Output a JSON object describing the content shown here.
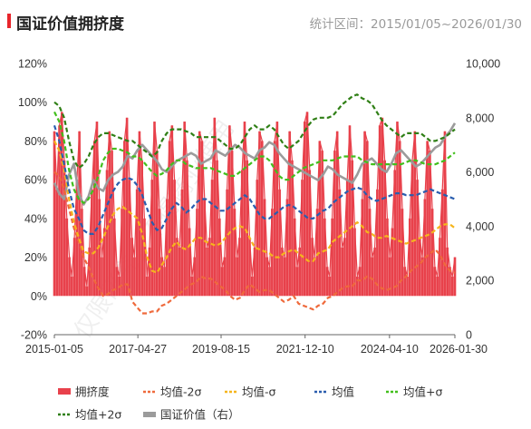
{
  "header": {
    "title": "国证价值拥挤度",
    "range_label": "统计区间：2015/01/05~2026/01/30"
  },
  "watermark": "仅限研究，不得商业使用",
  "chart_data": {
    "type": "line",
    "x_start": "2015-01-05",
    "x_end": "2026-01-30",
    "x_ticks": [
      "2015-01-05",
      "2017-04-27",
      "2019-08-15",
      "2021-12-10",
      "2024-04-10",
      "2026-01-30"
    ],
    "y_left": {
      "ticks": [
        "-20%",
        "0%",
        "20%",
        "40%",
        "60%",
        "80%",
        "100%",
        "120%"
      ],
      "min": -20,
      "max": 120
    },
    "y_right": {
      "ticks": [
        "0",
        "2,000",
        "4,000",
        "6,000",
        "8,000",
        "10,000"
      ],
      "min": 0,
      "max": 10000
    },
    "grid": false,
    "legend_position": "bottom",
    "series": [
      {
        "name": "拥挤度",
        "style": "bar",
        "color": "#e8414b",
        "axis": "left",
        "values": [
          85,
          55,
          88,
          95,
          70,
          40,
          20,
          10,
          30,
          60,
          85,
          45,
          15,
          5,
          25,
          55,
          80,
          90,
          50,
          20,
          35,
          65,
          85,
          75,
          40,
          15,
          10,
          45,
          80,
          92,
          60,
          30,
          20,
          55,
          85,
          70,
          40,
          10,
          25,
          60,
          90,
          75,
          45,
          20,
          15,
          50,
          80,
          88,
          60,
          30,
          25,
          55,
          90,
          70,
          35,
          10,
          20,
          45,
          85,
          80,
          50,
          25,
          30,
          60,
          92,
          70,
          40,
          15,
          20,
          55,
          88,
          75,
          45,
          20,
          30,
          65,
          90,
          70,
          30,
          10,
          25,
          60,
          85,
          80,
          50,
          20,
          15,
          45,
          80,
          90,
          55,
          25,
          20,
          50,
          85,
          70,
          40,
          15,
          25,
          60,
          90,
          95,
          65,
          30,
          20,
          45,
          80,
          75,
          40,
          15,
          10,
          40,
          75,
          85,
          55,
          25,
          30,
          60,
          88,
          70,
          35,
          10,
          15,
          50,
          85,
          80,
          45,
          20,
          25,
          55,
          88,
          92,
          70,
          40,
          20,
          35,
          65,
          90,
          80,
          45,
          15,
          10,
          40,
          70,
          85,
          60,
          30,
          20,
          50,
          80,
          75,
          45,
          15,
          10,
          30,
          55,
          85,
          25,
          15,
          10,
          20
        ]
      },
      {
        "name": "均值-2σ",
        "style": "dash",
        "color": "#ef6a3c",
        "axis": "left",
        "values": [
          64,
          62,
          55,
          45,
          35,
          28,
          20,
          15,
          9,
          4,
          0,
          1,
          3,
          4,
          6,
          6,
          -3,
          -6,
          -9,
          -9,
          -8,
          -8,
          -5,
          -4,
          -2,
          0,
          2,
          4,
          6,
          7,
          10,
          9,
          9,
          7,
          5,
          3,
          0,
          -2,
          -1,
          3,
          6,
          4,
          2,
          3,
          3,
          1,
          -1,
          -3,
          -2,
          0,
          -4,
          -5,
          -6,
          -7,
          -5,
          -4,
          -1,
          0,
          2,
          4,
          5,
          5,
          8,
          8,
          10,
          9,
          6,
          4,
          3,
          4,
          5,
          8,
          10,
          13,
          15,
          17,
          20,
          22,
          24,
          21,
          16,
          13,
          12
        ]
      },
      {
        "name": "均值-σ",
        "style": "dash",
        "color": "#f5b51d",
        "axis": "left",
        "values": [
          80,
          75,
          65,
          50,
          38,
          30,
          23,
          22,
          22,
          25,
          30,
          36,
          42,
          45,
          46,
          44,
          42,
          40,
          32,
          20,
          13,
          12,
          16,
          20,
          25,
          28,
          25,
          24,
          27,
          30,
          30,
          28,
          27,
          26,
          27,
          30,
          33,
          35,
          36,
          35,
          30,
          25,
          24,
          23,
          22,
          20,
          20,
          22,
          23,
          24,
          22,
          20,
          18,
          18,
          22,
          23,
          24,
          28,
          30,
          32,
          34,
          36,
          38,
          36,
          33,
          32,
          30,
          30,
          31,
          30,
          29,
          28,
          27,
          28,
          29,
          30,
          31,
          32,
          34,
          36,
          37,
          37,
          35
        ]
      },
      {
        "name": "均值",
        "style": "dash",
        "color": "#2a5dae",
        "axis": "left",
        "values": [
          88,
          80,
          68,
          55,
          45,
          40,
          34,
          32,
          32,
          36,
          42,
          48,
          54,
          58,
          60,
          61,
          60,
          57,
          52,
          45,
          38,
          34,
          35,
          40,
          45,
          48,
          46,
          43,
          45,
          48,
          50,
          50,
          48,
          46,
          44,
          44,
          46,
          48,
          50,
          52,
          50,
          46,
          42,
          40,
          40,
          42,
          44,
          46,
          47,
          46,
          44,
          42,
          40,
          40,
          42,
          44,
          45,
          48,
          50,
          52,
          54,
          55,
          56,
          55,
          52,
          50,
          49,
          50,
          51,
          52,
          53,
          53,
          52,
          52,
          52,
          53,
          54,
          55,
          54,
          53,
          52,
          51,
          50
        ]
      },
      {
        "name": "均值+σ",
        "style": "dash",
        "color": "#42bf1d",
        "axis": "left",
        "values": [
          95,
          90,
          80,
          65,
          55,
          50,
          48,
          50,
          55,
          62,
          70,
          74,
          76,
          76,
          75,
          74,
          72,
          72,
          70,
          67,
          64,
          62,
          63,
          65,
          68,
          70,
          70,
          68,
          67,
          66,
          66,
          66,
          66,
          65,
          64,
          63,
          62,
          62,
          64,
          66,
          68,
          70,
          72,
          72,
          70,
          66,
          62,
          60,
          60,
          62,
          64,
          66,
          67,
          68,
          69,
          70,
          70,
          70,
          71,
          72,
          72,
          72,
          72,
          70,
          69,
          68,
          68,
          68,
          68,
          68,
          68,
          68,
          69,
          70,
          70,
          69,
          68,
          68,
          68,
          69,
          70,
          72,
          74
        ]
      },
      {
        "name": "均值+2σ",
        "style": "dash",
        "color": "#2f7f15",
        "axis": "left",
        "values": [
          100,
          98,
          92,
          80,
          70,
          66,
          68,
          72,
          78,
          82,
          84,
          84,
          83,
          82,
          81,
          80,
          80,
          78,
          76,
          74,
          72,
          74,
          80,
          84,
          86,
          86,
          86,
          85,
          84,
          82,
          82,
          82,
          82,
          82,
          80,
          78,
          76,
          76,
          78,
          82,
          86,
          88,
          86,
          86,
          88,
          86,
          82,
          78,
          76,
          78,
          80,
          84,
          88,
          91,
          92,
          92,
          92,
          93,
          96,
          99,
          101,
          103,
          104,
          102,
          101,
          99,
          95,
          91,
          88,
          86,
          84,
          82,
          84,
          84,
          84,
          84,
          82,
          80,
          80,
          81,
          82,
          84,
          86
        ]
      },
      {
        "name": "国证价值（右）",
        "style": "line",
        "color": "#9b9b9b",
        "axis": "right",
        "values": [
          5600,
          5200,
          5000,
          5900,
          6300,
          5200,
          4800,
          5100,
          5700,
          5400,
          5300,
          5700,
          5900,
          6000,
          6200,
          6600,
          6500,
          6800,
          7000,
          6800,
          6600,
          6400,
          6100,
          6000,
          6200,
          6400,
          6500,
          6600,
          6700,
          6600,
          6300,
          6400,
          6500,
          6800,
          6700,
          6600,
          6800,
          7000,
          6900,
          6700,
          6600,
          6500,
          6800,
          6900,
          7100,
          7000,
          6700,
          6500,
          6300,
          6200,
          6100,
          6000,
          5900,
          5800,
          5700,
          5900,
          6200,
          6100,
          5900,
          5800,
          5700,
          5600,
          5900,
          6300,
          6400,
          6500,
          6300,
          6100,
          6000,
          6300,
          6700,
          6800,
          6600,
          6400,
          6200,
          6300,
          6500,
          6700,
          6900,
          7000,
          7300,
          7500,
          7800
        ]
      }
    ],
    "legend_rows": [
      [
        "拥挤度",
        "均值-2σ",
        "均值-σ",
        "均值",
        "均值+σ"
      ],
      [
        "均值+2σ",
        "国证价值（右）"
      ]
    ]
  }
}
